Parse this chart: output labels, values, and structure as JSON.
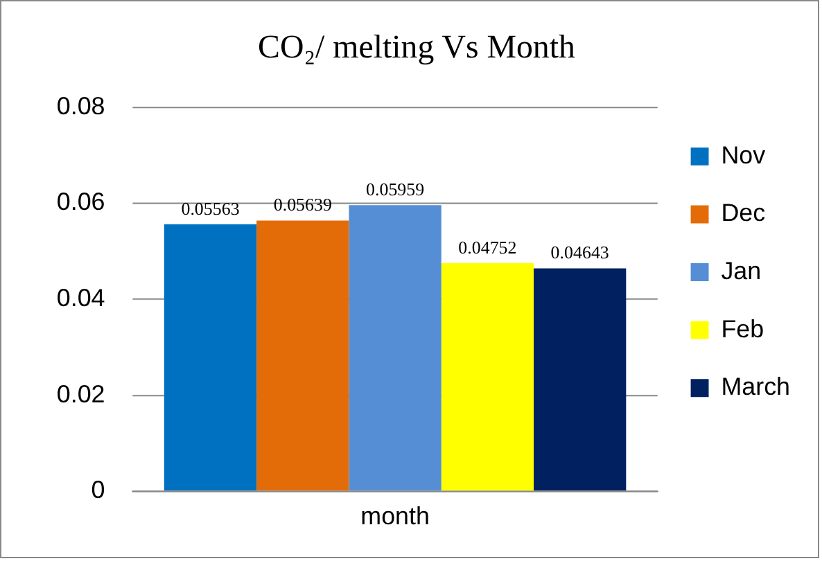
{
  "chart_data": {
    "type": "bar",
    "title": "CO₂/ melting Vs Month",
    "categories": [
      "month"
    ],
    "series": [
      {
        "name": "Nov",
        "color": "#0070c0",
        "values": [
          0.05563
        ]
      },
      {
        "name": "Dec",
        "color": "#e36c09",
        "values": [
          0.05639
        ]
      },
      {
        "name": "Jan",
        "color": "#558ed5",
        "values": [
          0.05959
        ]
      },
      {
        "name": "Feb",
        "color": "#ffff00",
        "values": [
          0.04752
        ]
      },
      {
        "name": "March",
        "color": "#002060",
        "values": [
          0.04643
        ]
      }
    ],
    "ylim": [
      0,
      0.08
    ],
    "yticks": [
      0,
      0.02,
      0.04,
      0.06,
      0.08
    ],
    "grid": "y",
    "legend": "right",
    "data_labels": true
  }
}
